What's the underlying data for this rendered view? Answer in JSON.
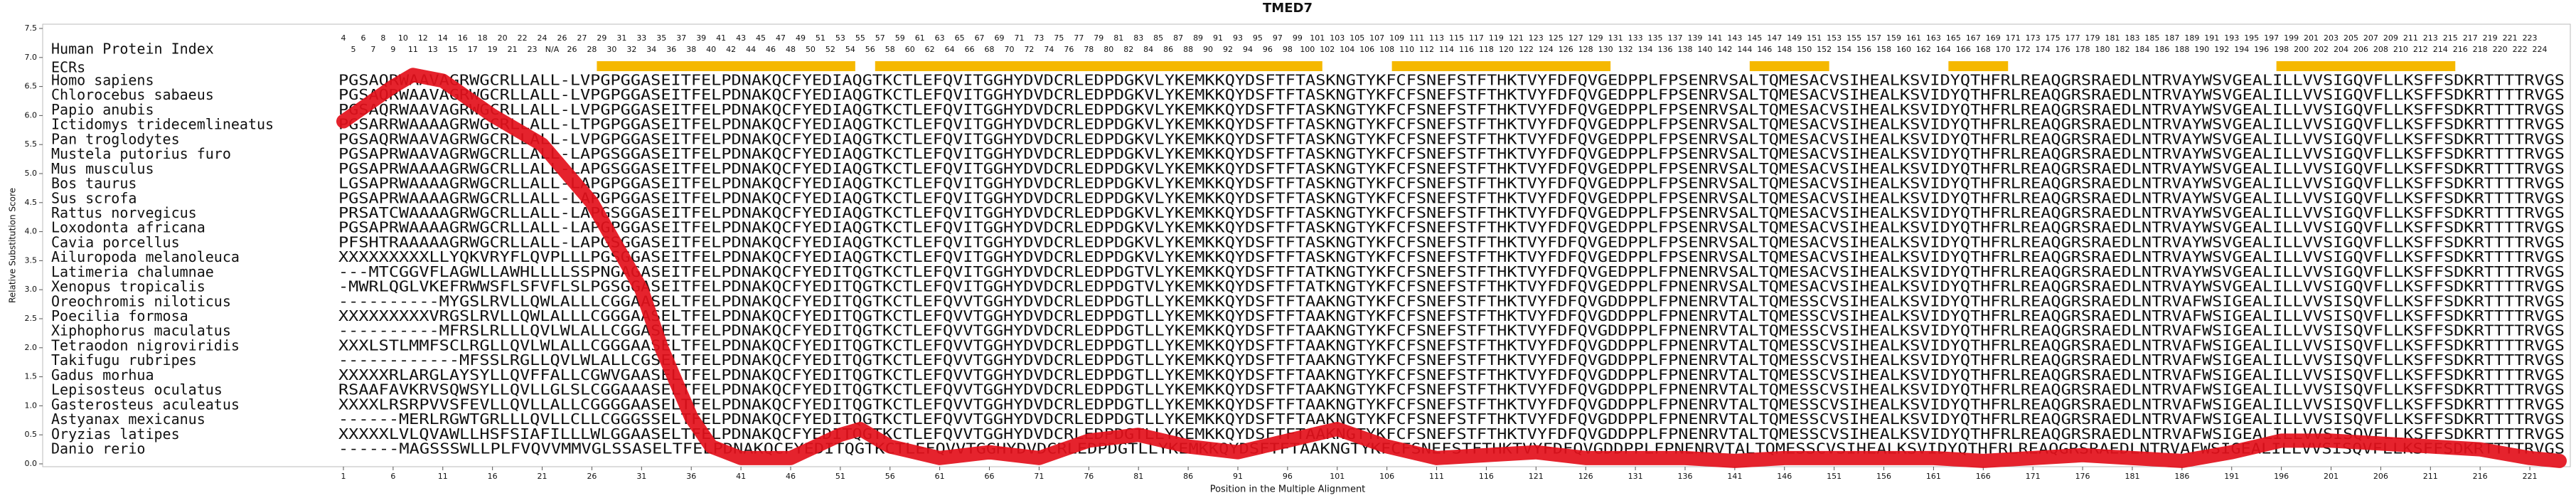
{
  "chart_data": {
    "type": "line",
    "title": "TMED7",
    "ylabel": "Relative Substitution Score",
    "xlabel": "Position in the Multiple Alignment",
    "index_label": "Human Protein Index",
    "ecr_label": "ECRs",
    "ylim": [
      0,
      7.5
    ],
    "yticks": [
      {
        "value": 0,
        "label": "0.0"
      },
      0.5,
      {
        "value": 1,
        "label": "1.0"
      },
      1.5,
      {
        "value": 2,
        "label": "2.0"
      },
      2.5,
      {
        "value": 3,
        "label": "3.0"
      },
      3.5,
      {
        "value": 4,
        "label": "4.0"
      },
      4.5,
      {
        "value": 5,
        "label": "5.0"
      },
      5.5,
      {
        "value": 6,
        "label": "6.0"
      },
      6.5,
      {
        "value": 7,
        "label": "7.0"
      },
      7.5
    ],
    "xlim": [
      1,
      224
    ],
    "xticks": [
      1,
      6,
      11,
      16,
      21,
      26,
      31,
      36,
      41,
      46,
      51,
      56,
      61,
      66,
      71,
      76,
      81,
      86,
      91,
      96,
      101,
      106,
      111,
      116,
      121,
      126,
      131,
      136,
      141,
      146,
      151,
      156,
      161,
      166,
      171,
      176,
      181,
      186,
      191,
      196,
      201,
      206,
      211,
      216,
      221
    ],
    "index_top": [
      4,
      6,
      8,
      10,
      12,
      14,
      16,
      18,
      20,
      22,
      24,
      26,
      27,
      29,
      31,
      33,
      35,
      37,
      39,
      41,
      43,
      45,
      47,
      49,
      51,
      53,
      55,
      57,
      59,
      61,
      63,
      65,
      67,
      69,
      71,
      73,
      75,
      77,
      79,
      81,
      83,
      85,
      87,
      89,
      91,
      93,
      95,
      97,
      99,
      101,
      103,
      105,
      107,
      109,
      111,
      113,
      115,
      117,
      119,
      121,
      123,
      125,
      127,
      129,
      131,
      133,
      135,
      137,
      139,
      141,
      143,
      145,
      147,
      149,
      151,
      153,
      155,
      157,
      159,
      161,
      163,
      165,
      167,
      169,
      171,
      173,
      175,
      177,
      179,
      181,
      183,
      185,
      187,
      189,
      191,
      193,
      195,
      197,
      199,
      201,
      203,
      205,
      207,
      209,
      211,
      213,
      215,
      217,
      219,
      221,
      223
    ],
    "index_bottom": [
      5,
      7,
      9,
      11,
      13,
      15,
      17,
      19,
      21,
      23,
      "N/A",
      26,
      28,
      30,
      32,
      34,
      36,
      38,
      40,
      42,
      44,
      46,
      48,
      50,
      52,
      54,
      56,
      58,
      60,
      62,
      64,
      66,
      68,
      70,
      72,
      74,
      76,
      78,
      80,
      82,
      84,
      86,
      88,
      90,
      92,
      94,
      96,
      98,
      100,
      102,
      104,
      106,
      108,
      110,
      112,
      114,
      116,
      118,
      120,
      122,
      124,
      126,
      128,
      130,
      132,
      134,
      136,
      138,
      140,
      142,
      144,
      146,
      148,
      150,
      152,
      154,
      156,
      158,
      160,
      162,
      164,
      166,
      168,
      170,
      172,
      174,
      176,
      178,
      180,
      182,
      184,
      186,
      188,
      190,
      192,
      194,
      196,
      198,
      200,
      202,
      204,
      206,
      208,
      210,
      212,
      214,
      216,
      218,
      220,
      222,
      224
    ],
    "ecrs": [
      [
        27,
        52
      ],
      [
        55,
        99
      ],
      [
        107,
        128
      ],
      [
        143,
        150
      ],
      [
        163,
        168
      ],
      [
        196,
        213
      ]
    ],
    "ecr_color": "#f5b800",
    "sequence_color": "#24509c",
    "species": [
      {
        "name": "Homo sapiens",
        "sequence": "PGSAQRWAAVAGRWGCRLLALL-LVPGPGGASEITFELPDNAKQCFYEDIAQGTKCTLEFQVITGGHYDVDCRLEDPDGKVLYKEMKKQYDSFTFTASKNGTYKFCFSNEFSTFTHKTVYFDFQVGEDPPLFPSENRVSALTQMESACVSIHEALKSVIDYQTHFRLREAQGRSRAEDLNTRVAYWSVGEALILLVVSIGQVFLLKSFFSDKRTTTTRVGS"
      },
      {
        "name": "Chlorocebus sabaeus",
        "sequence": "PGSAQRWAAVAGRWGCRLLALL-LVPGPGGASEITFELPDNAKQCFYEDIAQGTKCTLEFQVITGGHYDVDCRLEDPDGKVLYKEMKKQYDSFTFTASKNGTYKFCFSNEFSTFTHKTVYFDFQVGEDPPLFPSENRVSALTQMESACVSIHEALKSVIDYQTHFRLREAQGRSRAEDLNTRVAYWSVGEALILLVVSIGQVFLLKSFFSDKRTTTTRVGS"
      },
      {
        "name": "Papio anubis",
        "sequence": "PGSAQRWAAVAGRWGCRLLALL-LVPGPGGASEITFELPDNAKQCFYEDIAQGTKCTLEFQVITGGHYDVDCRLEDPDGKVLYKEMKKQYDSFTFTASKNGTYKFCFSNEFSTFTHKTVYFDFQVGEDPPLFPSENRVSALTQMESACVSIHEALKSVIDYQTHFRLREAQGRSRAEDLNTRVAYWSVGEALILLVVSIGQVFLLKSFFSDKRTTTTRVGS"
      },
      {
        "name": "Ictidomys tridecemlineatus",
        "sequence": "PGSARRWAAAAGRWGCRLLALL-LTPGPGGASEITFELPDNAKQCFYEDIAQGTKCTLEFQVITGGHYDVDCRLEDPDGKVLYKEMKKQYDSFTFTASKNGTYKFCFSNEFSTFTHKTVYFDFQVGEDPPLFPSENRVSALTQMESACVSIHEALKSVIDYQTHFRLREAQGRSRAEDLNTRVAYWSVGEALILLVVSIGQVFLLKSFFSDKRTTTTRVGS"
      },
      {
        "name": "Pan troglodytes",
        "sequence": "PGSAQRWAAVAGRWGCRLLALL-LVPGPGGASEITFELPDNAKQCFYEDIAQGTKCTLEFQVITGGHYDVDCRLEDPDGKVLYKEMKKQYDSFTFTASKNGTYKFCFSNEFSTFTHKTVYFDFQVGEDPPLFPSENRVSALTQMESACVSIHEALKSVIDYQTHFRLREAQGRSRAEDLNTRVAYWSVGEALILLVVSIGQVFLLKSFFSDKRTTTTRVGS"
      },
      {
        "name": "Mustela putorius furo",
        "sequence": "PGSAPRWAAVAGRWGCRLLALL-LAPGSGGASEITFELPDNAKQCFYEDIAQGTKCTLEFQVITGGHYDVDCRLEDPDGKVLYKEMKKQYDSFTFTASKNGTYKFCFSNEFSTFTHKTVYFDFQVGEDPPLFPSENRVSALTQMESACVSIHEALKSVIDYQTHFRLREAQGRSRAEDLNTRVAYWSVGEALILLVVSIGQVFLLKSFFSDKRTTTTRVGS"
      },
      {
        "name": "Mus musculus",
        "sequence": "PGSAPRWAAAAGRWGCRLLALL-LAPGSGGASEITFELPDNAKQCFYEDIAQGTKCTLEFQVITGGHYDVDCRLEDPDGKVLYKEMKKQYDSFTFTASKNGTYKFCFSNEFSTFTHKTVYFDFQVGEDPPLFPSENRVSALTQMESACVSIHEALKSVIDYQTHFRLREAQGRSRAEDLNTRVAYWSVGEALILLVVSIGQVFLLKSFFSDKRTTTTRVGS"
      },
      {
        "name": "Bos taurus",
        "sequence": "LGSAPRWAAAAGRWGCRLLALL-LAPGPGGASEITFELPDNAKQCFYEDIAQGTKCTLEFQVITGGHYDVDCRLEDPDGKVLYKEMKKQYDSFTFTASKNGTYKFCFSNEFSTFTHKTVYFDFQVGEDPPLFPSENRVSALTQMESACVSIHEALKSVIDYQTHFRLREAQGRSRAEDLNTRVAYWSVGEALILLVVSIGQVFLLKSFFSDKRTTTTRVGS"
      },
      {
        "name": "Sus scrofa",
        "sequence": "PGSAPRWAAAAGRWGCRLLALL-LAPGPGGASEITFELPDNAKQCFYEDIAQGTKCTLEFQVITGGHYDVDCRLEDPDGKVLYKEMKKQYDSFTFTASKNGTYKFCFSNEFSTFTHKTVYFDFQVGEDPPLFPSENRVSALTQMESACVSIHEALKSVIDYQTHFRLREAQGRSRAEDLNTRVAYWSVGEALILLVVSIGQVFLLKSFFSDKRTTTTRVGS"
      },
      {
        "name": "Rattus norvegicus",
        "sequence": "PRSATCWAAAAGRWGCRLLALL-LAPGSGGASEITFELPDNAKQCFYEDIAQGTKCTLEFQVITGGHYDVDCRLEDPDGKVLYKEMKKQYDSFTFTASKNGTYKFCFSNEFSTFTHKTVYFDFQVGEDPPLFPSENRVSALTQMESACVSIHEALKSVIDYQTHFRLREAQGRSRAEDLNTRVAYWSVGEALILLVVSIGQVFLLKSFFSDKRTTTTRVGS"
      },
      {
        "name": "Loxodonta africana",
        "sequence": "PGSAPRWAAAAGRWGCRLLALL-LAPGPGGASEITFELPDNAKQCFYEDIAQGTKCTLEFQVITGGHYDVDCRLEDPDGKVLYKEMKKQYDSFTFTASKNGTYKFCFSNEFSTFTHKTVYFDFQVGEDPPLFPSENRVSALTQMESACVSIHEALKSVIDYQTHFRLREAQGRSRAEDLNTRVAYWSVGEALILLVVSIGQVFLLKSFFSDKRTTTTRVGS"
      },
      {
        "name": "Cavia porcellus",
        "sequence": "PFSHTRAAAAAGRWGCRLLALL-LAPGSGGASEITFELPDNAKQCFYEDIAQGTKCTLEFQVITGGHYDVDCRLEDPDGKVLYKEMKKQYDSFTFTASKNGTYKFCFSNEFSTFTHKTVYFDFQVGEDPPLFPSENRVSALTQMESACVSIHEALKSVIDYQTHFRLREAQGRSRAEDLNTRVAYWSVGEALILLVVSIGQVFLLKSFFSDKRTTTTRVGS"
      },
      {
        "name": "Ailuropoda melanoleuca",
        "sequence": "XXXXXXXXXLLYQKVRYFLQVPLLLPGSGGASEITFELPDNAKQCFYEDIAQGTKCTLEFQVITGGHYDVDCRLEDPDGKVLYKEMKKQYDSFTFTASKNGTYKFCFSNEFSTFTHKTVYFDFQVGEDPPLFPSENRVSALTQMESACVSIHEALKSVIDYQTHFRLREAQGRSRAEDLNTRVAYWSVGEALILLVVSIGQVFLLKSFFSDKRTTTTRVGS"
      },
      {
        "name": "Latimeria chalumnae",
        "sequence": "---MTCGGVFLAGWLLAWHLLLLSSPNGAGASEITFELPDNAKQCFYEDITQGTKCTLEFQVITGGHYDVDCRLEDPDGTVLYKEMKKQYDSFTFTATKNGTYKFCFSNEFSTFTHKTVYFDFQVGEDPPLFPNENRVSALTQMESACVSIHEALKSVIDYQTHFRLREAQGRSRAEDLNTRVAYWSVGEALILLVVSIGQVFLLKSFFSDKRTTTTRVGS"
      },
      {
        "name": "Xenopus tropicalis",
        "sequence": "-MWRLQGLVKEFRWWSFLSFVFLSLPGSGGASEITFELPDNAKQCFYEDITQGTKCTLEFQVITGGHYDVDCRLEDPDGTVLYKEMKKQYDSFTFTATKNGTYKFCFSNEFSTFTHKTVYFDFQVGEDPPLFPNENRVSALTQMESACVSIHEALKSVIDYQTHFRLREAQGRSRAEDLNTRVAYWSVGEALILLVVSIGQVFLLKSFFSDKRTTTTRVGS"
      },
      {
        "name": "Oreochromis niloticus",
        "sequence": "----------MYGSLRVLLQWLALLLCGGAASELTFELPDNAKQCFYEDITQGTKCTLEFQVVTGGHYDVDCRLEDPDGTLLYKEMKKQYDSFTFTAAKNGTYKFCFSNEFSTFTHKTVYFDFQVGDDPPLFPNENRVTALTQMESSCVSIHEALKSVIDYQTHFRLREAQGRSRAEDLNTRVAFWSIGEALILLVVSISQVFLLKSFFSDKRTTTTRVGS"
      },
      {
        "name": "Poecilia formosa",
        "sequence": "XXXXXXXXXVRGSLRVLLQWLALLLCGGGAASELTFELPDNAKQCFYEDITQGTKCTLEFQVVTGGHYDVDCRLEDPDGTLLYKEMKKQYDSFTFTAAKNGTYKFCFSNEFSTFTHKTVYFDFQVGDDPPLFPNENRVTALTQMESSCVSIHEALKSVIDYQTHFRLREAQGRSRAEDLNTRVAFWSIGEALILLVVSISQVFLLKSFFSDKRTTTTRVGS"
      },
      {
        "name": "Xiphophorus maculatus",
        "sequence": "----------MFRSLRLLLQVLWLALLCGGASELTFELPDNAKQCFYEDITQGTKCTLEFQVVTGGHYDVDCRLEDPDGTLLYKEMKKQYDSFTFTAAKNGTYKFCFSNEFSTFTHKTVYFDFQVGDDPPLFPNENRVTALTQMESSCVSIHEALKSVIDYQTHFRLREAQGRSRAEDLNTRVAFWSIGEALILLVVSISQVFLLKSFFSDKRTTTTRVGS"
      },
      {
        "name": "Tetraodon nigroviridis",
        "sequence": "XXXLSTLMMFSCLRGLLQVLWLALLCGGGAASELTFELPDNAKQCFYEDITQGTKCTLEFQVVTGGHYDVDCRLEDPDGTLLYKEMKKQYDSFTFTAAKNGTYKFCFSNEFSTFTHKTVYFDFQVGDDPPLFPNENRVTALTQMESSCVSIHEALKSVIDYQTHFRLREAQGRSRAEDLNTRVAFWSIGEALILLVVSISQVFLLKSFFSDKRTTTTRVGS"
      },
      {
        "name": "Takifugu rubripes",
        "sequence": "------------MFSSLRGLLQVLWLALLCGSELTFELPDNAKQCFYEDITQGTKCTLEFQVVTGGHYDVDCRLEDPDGTLLYKEMKKQYDSFTFTAAKNGTYKFCFSNEFSTFTHKTVYFDFQVGDDPPLFPNENRVTALTQMESSCVSIHEALKSVIDYQTHFRLREAQGRSRAEDLNTRVAFWSIGEALILLVVSISQVFLLKSFFSDKRTTTTRVGS"
      },
      {
        "name": "Gadus morhua",
        "sequence": "XXXXXRLARGLAYSYLLQVFFALLCGWVGAASELTFELPDNAKQCFYEDITQGTKCTLEFQVVTGGHYDVDCRLEDPDGTLLYKEMKKQYDSFTFTAAKNGTYKFCFSNEFSTFTHKTVYFDFQVGDDPPLFPNENRVTALTQMESSCVSIHEALKSVIDYQTHFRLREAQGRSRAEDLNTRVAFWSIGEALILLVVSISQVFLLKSFFSDKRTTTTRVGS"
      },
      {
        "name": "Lepisosteus oculatus",
        "sequence": "RSAAFAVKRVSQWSYLLQVLLGLSLCGGAAASELTFELPDNAKQCFYEDITQGTKCTLEFQVVTGGHYDVDCRLEDPDGTLLYKEMKKQYDSFTFTAAKNGTYKFCFSNEFSTFTHKTVYFDFQVGDDPPLFPNENRVTALTQMESSCVSIHEALKSVIDYQTHFRLREAQGRSRAEDLNTRVAFWSIGEALILLVVSISQVFLLKSFFSDKRTTTTRVGS"
      },
      {
        "name": "Gasterosteus aculeatus",
        "sequence": "XXXXLRSRPVVSFEVLLQVLLALLCGGGGAASELTFELPDNAKQCFYEDITQGTKCTLEFQVVTGGHYDVDCRLEDPDGTLLYKEMKKQYDSFTFTAAKNGTYKFCFSNEFSTFTHKTVYFDFQVGDDPPLFPNENRVTALTQMESSCVSIHEALKSVIDYQTHFRLREAQGRSRAEDLNTRVAFWSIGEALILLVVSISQVFLLKSFFSDKRTTTTRVGS"
      },
      {
        "name": "Astyanax mexicanus",
        "sequence": "------MERLRGWTGRLLLQVLLCLLCGGGSSELTFELPDNAKQCFYEDITQGTKCTLEFQVVTGGHYDVDCRLEDPDGTLLYKEMKKQYDSFTFTAAKNGTYKFCFSNEFSTFTHKTVYFDFQVGDDPPLFPNENRVTALTQMESSCVSIHEALKSVIDYQTHFRLREAQGRSRAEDLNTRVAFWSIGEALILLVVSISQVFLLKSFFSDKRTTTTRVGS"
      },
      {
        "name": "Oryzias latipes",
        "sequence": "XXXXXLVLQVAWLLHSFSIAFILLLWLGGAASELTFELPDNAKQCFYEDITQGTKCTLEFQVVTGGHYDVDCRLEDPDGTLLYKEMKKQYDSFTFTAAKNGTYKFCFSNEFSTFTHKTVYFDFQVGDDPPLFPNENRVTALTQMESSCVSIHEALKSVIDYQTHFRLREAQGRSRAEDLNTRVAFWSIGEALILLVVSISQVFLLKSFFSDKRTTTTRVGS"
      },
      {
        "name": "Danio rerio",
        "sequence": "------MAGSSSWLLPLFVQVVMMVGLSSASELTFELPDNAKQCFYEDITQGTKCTLEFQVVTGGHYDVDCRLEDPDGTLLYKEMKKQYDSFTFTAAKNGTYKFCFSNEFSTFTHKTVYFDFQVGDDPPLFPNENRVTALTQMESSCVSIHEALKSVIDYQTHFRLREAQGRSRAEDLNTRVAFWSIGEALILLVVSISQVFLLKSFFSDKRTTTTRVGS"
      }
    ],
    "series": [
      {
        "color": "#e3101b",
        "x": [
          1,
          6,
          8,
          11,
          16,
          21,
          26,
          31,
          33,
          36,
          38,
          41,
          46,
          51,
          53,
          56,
          61,
          66,
          71,
          76,
          81,
          86,
          91,
          96,
          101,
          106,
          111,
          116,
          121,
          126,
          131,
          136,
          141,
          146,
          151,
          156,
          161,
          166,
          171,
          176,
          181,
          186,
          191,
          196,
          201,
          206,
          211,
          216,
          221,
          224
        ],
        "values": [
          5.9,
          6.5,
          6.7,
          6.6,
          6.0,
          5.5,
          4.5,
          3.0,
          2.0,
          0.8,
          0.3,
          0.1,
          0.1,
          0.5,
          0.6,
          0.3,
          0.1,
          0.2,
          0.1,
          0.4,
          0.5,
          0.3,
          0.2,
          0.4,
          0.6,
          0.3,
          0.1,
          0.15,
          0.2,
          0.1,
          0.1,
          0.1,
          0.05,
          0.1,
          0.1,
          0.1,
          0.1,
          0.05,
          0.1,
          0.15,
          0.1,
          0.05,
          0.2,
          0.4,
          0.4,
          0.35,
          0.3,
          0.25,
          0.1,
          0.05
        ]
      }
    ]
  }
}
